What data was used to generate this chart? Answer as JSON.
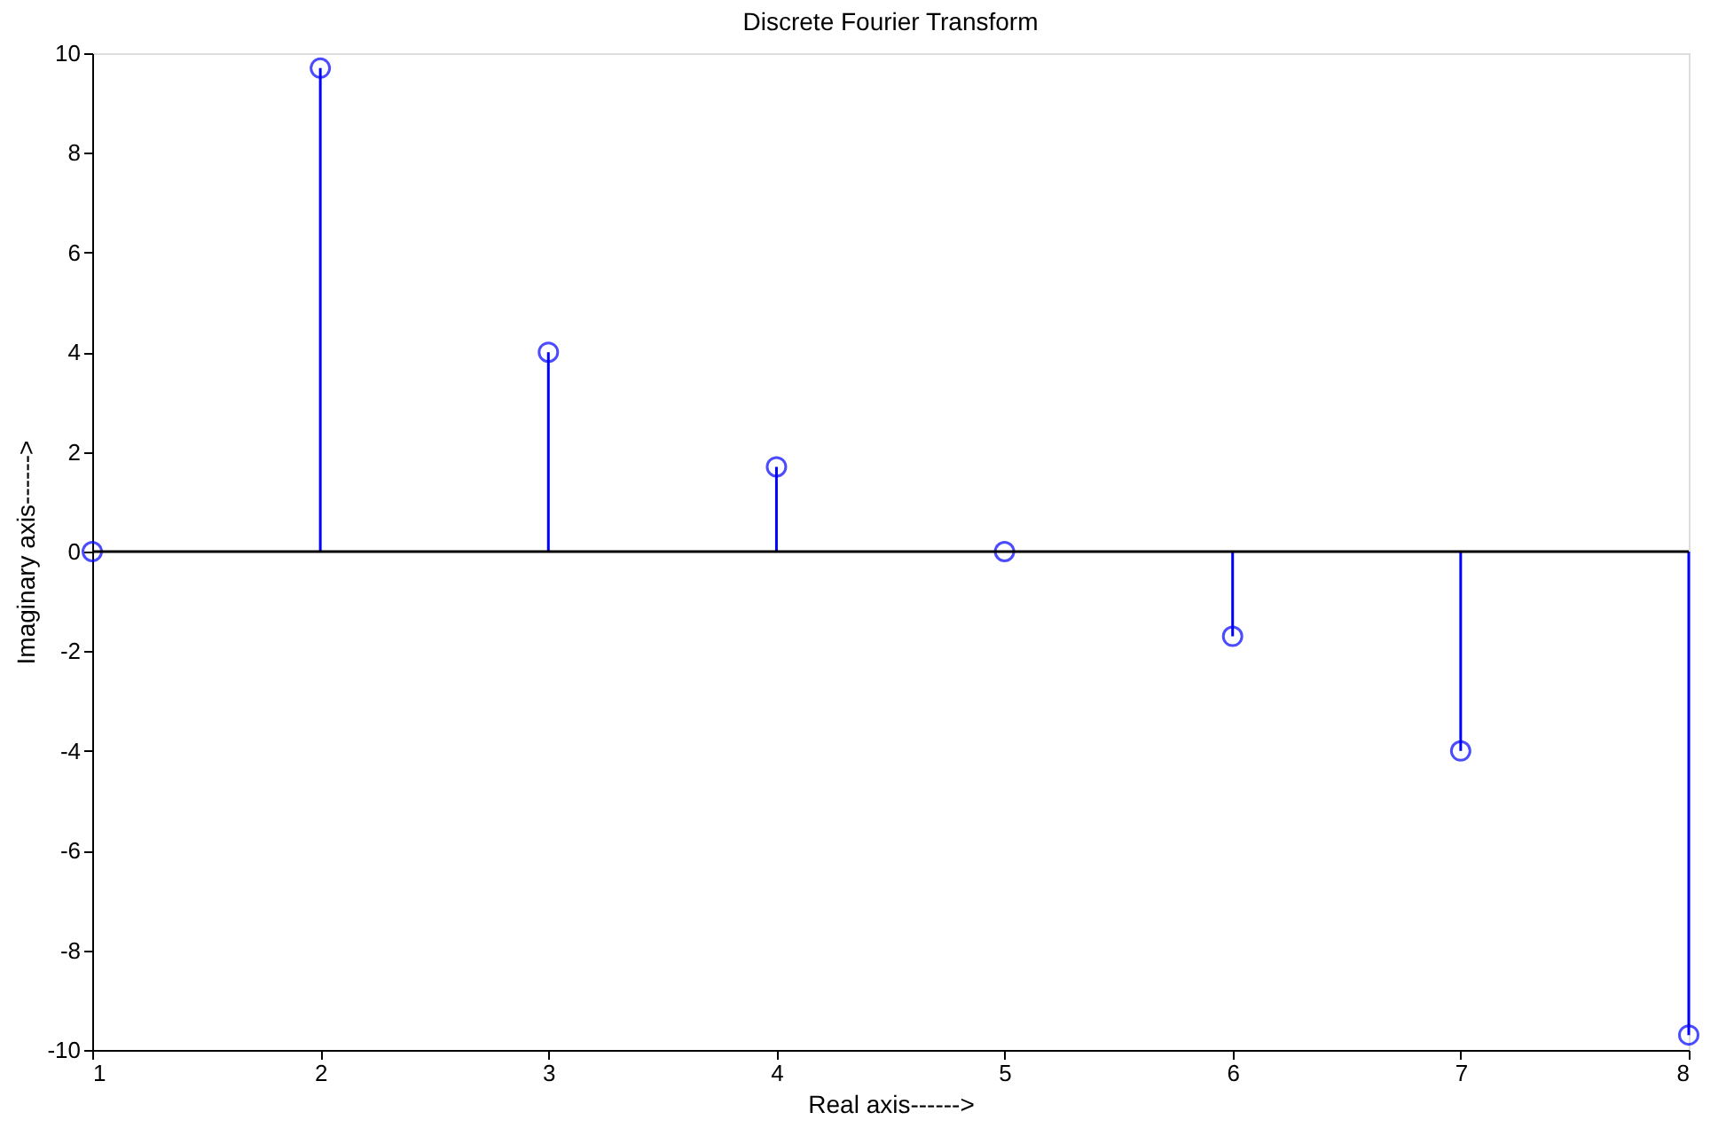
{
  "chart_data": {
    "type": "lollipop",
    "title": "Discrete Fourier Transform",
    "xlabel": "Real axis------>",
    "ylabel": "Imaginary axis------>",
    "x": [
      1,
      2,
      3,
      4,
      5,
      6,
      7,
      8
    ],
    "series": [
      {
        "color": "#0000ff",
        "values": [
          0,
          9.7,
          4.0,
          1.7,
          0,
          -1.7,
          -4.0,
          -9.7
        ]
      }
    ],
    "xlim": [
      1,
      8
    ],
    "xticks": [
      1,
      2,
      3,
      4,
      5,
      6,
      7,
      8
    ],
    "ylim": [
      -10,
      10
    ],
    "yticks": [
      -10,
      -8,
      -6,
      -4,
      -2,
      0,
      2,
      4,
      6,
      8,
      10
    ],
    "ref_lines": [
      {
        "axis": "y",
        "value": 0,
        "color": "#000000"
      }
    ],
    "marker": "circle",
    "grid": false
  }
}
